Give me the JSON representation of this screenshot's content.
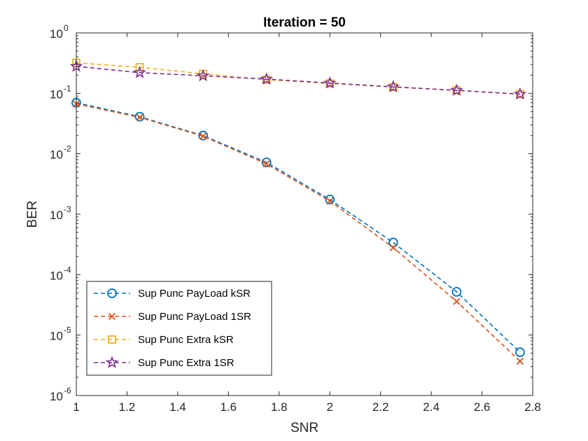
{
  "chart_data": {
    "type": "line",
    "title": "Iteration = 50",
    "xlabel": "SNR",
    "ylabel": "BER",
    "xlim": [
      1,
      2.8
    ],
    "ylim": [
      1e-06,
      1
    ],
    "yscale": "log",
    "x_ticks": [
      "1",
      "1.2",
      "1.4",
      "1.6",
      "1.8",
      "2",
      "2.2",
      "2.4",
      "2.6",
      "2.8"
    ],
    "y_ticks": [
      {
        "base": "10",
        "exp": "0"
      },
      {
        "base": "10",
        "exp": "-1"
      },
      {
        "base": "10",
        "exp": "-2"
      },
      {
        "base": "10",
        "exp": "-3"
      },
      {
        "base": "10",
        "exp": "-4"
      },
      {
        "base": "10",
        "exp": "-5"
      },
      {
        "base": "10",
        "exp": "-6"
      }
    ],
    "grid": false,
    "legend_position": "bottom-left",
    "x": [
      1,
      1.25,
      1.5,
      1.75,
      2,
      2.25,
      2.5,
      2.75
    ],
    "series": [
      {
        "name": "Sup Punc PayLoad kSR",
        "color": "#0072BD",
        "marker": "circle",
        "values": [
          0.07,
          0.041,
          0.02,
          0.0072,
          0.00175,
          0.00034,
          5.2e-05,
          5.2e-06
        ]
      },
      {
        "name": "Sup Punc PayLoad 1SR",
        "color": "#D95319",
        "marker": "x",
        "values": [
          0.067,
          0.04,
          0.0195,
          0.0068,
          0.00165,
          0.00028,
          3.6e-05,
          3.7e-06
        ]
      },
      {
        "name": "Sup Punc Extra kSR",
        "color": "#EDB120",
        "marker": "square",
        "values": [
          0.32,
          0.27,
          0.21,
          0.168,
          0.146,
          0.127,
          0.112,
          0.097
        ]
      },
      {
        "name": "Sup Punc Extra 1SR",
        "color": "#7E2F8E",
        "marker": "star",
        "values": [
          0.28,
          0.22,
          0.195,
          0.172,
          0.148,
          0.128,
          0.112,
          0.097
        ]
      }
    ]
  }
}
